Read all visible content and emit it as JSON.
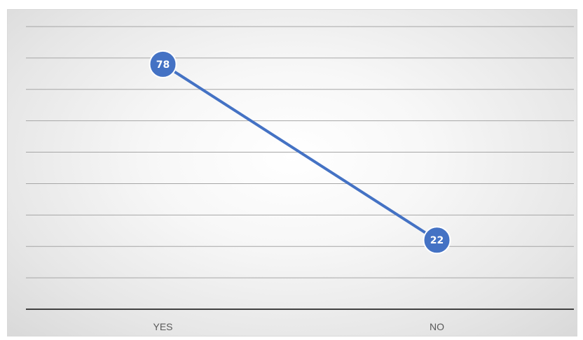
{
  "chart_data": {
    "type": "line",
    "title": "",
    "xlabel": "",
    "ylabel": "",
    "categories": [
      "YES",
      "NO"
    ],
    "series": [
      {
        "values": [
          78,
          22
        ],
        "color": "#4472c4"
      }
    ],
    "ylim": [
      0,
      90
    ],
    "ytick_step": 10,
    "show_y_tick_labels": false,
    "grid": true,
    "legend": "none",
    "data_labels": true
  }
}
